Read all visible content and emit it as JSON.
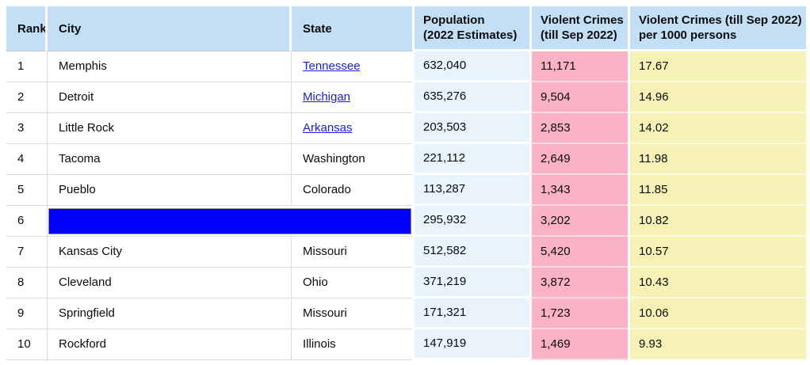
{
  "colors": {
    "header_bg": "#C3DFF5",
    "population_bg": "#E9F3FC",
    "crimes_bg": "#FAB2C4",
    "rate_bg": "#F6F1B5",
    "redaction": "#0100FE",
    "link": "#1B1BEF",
    "grid": "#DCDCDC",
    "header_grid": "#C9C9C9"
  },
  "table": {
    "headers": {
      "rank": "Rank",
      "city": "City",
      "state": "State",
      "population_line1": "Population",
      "population_line2": "(2022 Estimates)",
      "crimes_line1": "Violent Crimes",
      "crimes_line2": "(till Sep 2022)",
      "rate_line1": "Violent Crimes (till Sep 2022)",
      "rate_line2": "per 1000 persons"
    },
    "rows": [
      {
        "rank": "1",
        "city": "Memphis",
        "state": "Tennessee",
        "state_is_link": true,
        "population": "632,040",
        "crimes": "11,171",
        "rate": "17.67"
      },
      {
        "rank": "2",
        "city": "Detroit",
        "state": "Michigan",
        "state_is_link": true,
        "population": "635,276",
        "crimes": "9,504",
        "rate": "14.96"
      },
      {
        "rank": "3",
        "city": "Little Rock",
        "state": "Arkansas",
        "state_is_link": true,
        "population": "203,503",
        "crimes": "2,853",
        "rate": "14.02"
      },
      {
        "rank": "4",
        "city": "Tacoma",
        "state": "Washington",
        "state_is_link": false,
        "population": "221,112",
        "crimes": "2,649",
        "rate": "11.98"
      },
      {
        "rank": "5",
        "city": "Pueblo",
        "state": "Colorado",
        "state_is_link": false,
        "population": "113,287",
        "crimes": "1,343",
        "rate": "11.85"
      },
      {
        "rank": "6",
        "redacted": true,
        "population": "295,932",
        "crimes": "3,202",
        "rate": "10.82"
      },
      {
        "rank": "7",
        "city": "Kansas City",
        "state": "Missouri",
        "state_is_link": false,
        "population": "512,582",
        "crimes": "5,420",
        "rate": "10.57"
      },
      {
        "rank": "8",
        "city": "Cleveland",
        "state": "Ohio",
        "state_is_link": false,
        "population": "371,219",
        "crimes": "3,872",
        "rate": "10.43"
      },
      {
        "rank": "9",
        "city": "Springfield",
        "state": "Missouri",
        "state_is_link": false,
        "population": "171,321",
        "crimes": "1,723",
        "rate": "10.06"
      },
      {
        "rank": "10",
        "city": "Rockford",
        "state": "Illinois",
        "state_is_link": false,
        "population": "147,919",
        "crimes": "1,469",
        "rate": "9.93"
      }
    ]
  },
  "chart_data": {
    "type": "table",
    "title": "",
    "columns": [
      "Rank",
      "City",
      "State",
      "Population (2022 Estimates)",
      "Violent Crimes (till Sep 2022)",
      "Violent Crimes (till Sep 2022) per 1000 persons"
    ],
    "rows": [
      [
        1,
        "Memphis",
        "Tennessee",
        632040,
        11171,
        17.67
      ],
      [
        2,
        "Detroit",
        "Michigan",
        635276,
        9504,
        14.96
      ],
      [
        3,
        "Little Rock",
        "Arkansas",
        203503,
        2853,
        14.02
      ],
      [
        4,
        "Tacoma",
        "Washington",
        221112,
        2649,
        11.98
      ],
      [
        5,
        "Pueblo",
        "Colorado",
        113287,
        1343,
        11.85
      ],
      [
        6,
        "[redacted]",
        "[redacted]",
        295932,
        3202,
        10.82
      ],
      [
        7,
        "Kansas City",
        "Missouri",
        512582,
        5420,
        10.57
      ],
      [
        8,
        "Cleveland",
        "Ohio",
        371219,
        3872,
        10.43
      ],
      [
        9,
        "Springfield",
        "Missouri",
        171321,
        1723,
        10.06
      ],
      [
        10,
        "Rockford",
        "Illinois",
        147919,
        1469,
        9.93
      ]
    ]
  }
}
